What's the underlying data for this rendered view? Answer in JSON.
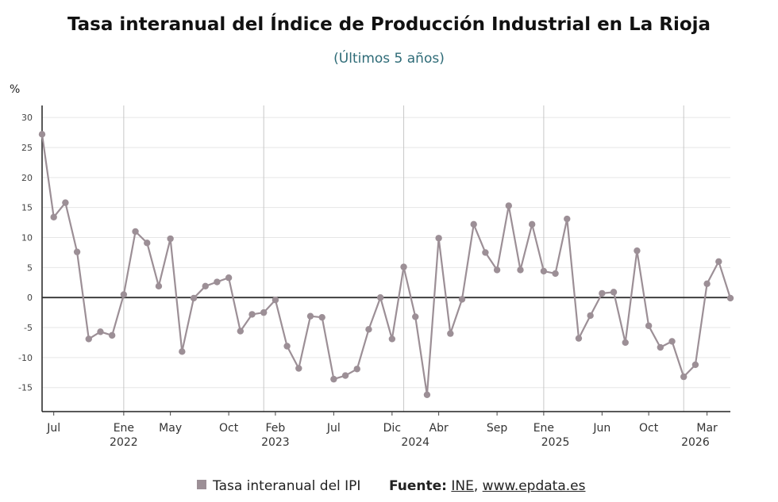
{
  "title": "Tasa interanual del Índice de Producción Industrial en La Rioja",
  "subtitle": "(Últimos 5 años)",
  "unit_label": "%",
  "legend": {
    "label": "Tasa interanual del IPI",
    "color": "#9c8f96"
  },
  "source": {
    "prefix": "Fuente:",
    "link1": "INE",
    "separator": ",",
    "link2": "www.epdata.es"
  },
  "chart_data": {
    "type": "line",
    "ylim": [
      -19,
      32
    ],
    "y_ticks": [
      30,
      25,
      20,
      15,
      10,
      5,
      0,
      -5,
      -10,
      -15
    ],
    "x_month_ticks": [
      {
        "i": 1,
        "label": "Jul"
      },
      {
        "i": 7,
        "label": "Ene"
      },
      {
        "i": 11,
        "label": "May"
      },
      {
        "i": 16,
        "label": "Oct"
      },
      {
        "i": 20,
        "label": "Feb"
      },
      {
        "i": 25,
        "label": "Jul"
      },
      {
        "i": 30,
        "label": "Dic"
      },
      {
        "i": 34,
        "label": "Abr"
      },
      {
        "i": 39,
        "label": "Sep"
      },
      {
        "i": 43,
        "label": "Ene"
      },
      {
        "i": 48,
        "label": "Jun"
      },
      {
        "i": 52,
        "label": "Oct"
      },
      {
        "i": 57,
        "label": "Mar"
      }
    ],
    "x_year_ticks": [
      {
        "i": 7,
        "label": "2022"
      },
      {
        "i": 20,
        "label": "2023"
      },
      {
        "i": 32,
        "label": "2024"
      },
      {
        "i": 44,
        "label": "2025"
      },
      {
        "i": 56,
        "label": "2026"
      }
    ],
    "year_lines": [
      7,
      19,
      31,
      43,
      55
    ],
    "series": [
      {
        "color": "#9c8f96",
        "values": [
          27.2,
          13.4,
          15.8,
          7.6,
          -6.9,
          -5.7,
          -6.3,
          0.5,
          11.0,
          9.1,
          1.9,
          9.8,
          -9.0,
          -0.1,
          1.9,
          2.6,
          3.3,
          -5.6,
          -2.8,
          -2.5,
          -0.4,
          -8.1,
          -11.8,
          -3.1,
          -3.3,
          -13.6,
          -13.0,
          -11.9,
          -5.3,
          0.0,
          -6.9,
          5.1,
          -3.2,
          -16.2,
          9.9,
          -6.0,
          -0.3,
          12.2,
          7.5,
          4.6,
          15.3,
          4.6,
          12.2,
          4.4,
          4.0,
          13.1,
          -6.8,
          -3.0,
          0.7,
          0.9,
          -7.5,
          7.8,
          -4.7,
          -8.3,
          -7.3,
          -13.2,
          -11.2,
          2.3,
          6.0,
          -0.1
        ]
      }
    ]
  }
}
